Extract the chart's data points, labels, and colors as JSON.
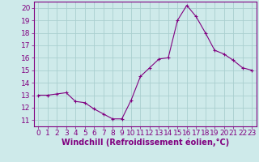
{
  "x_values": [
    0,
    1,
    2,
    3,
    4,
    5,
    6,
    7,
    8,
    9,
    10,
    11,
    12,
    13,
    14,
    15,
    16,
    17,
    18,
    19,
    20,
    21,
    22,
    23
  ],
  "y_values": [
    13.0,
    13.0,
    13.1,
    13.2,
    12.5,
    12.4,
    11.9,
    11.5,
    11.1,
    11.1,
    12.6,
    14.5,
    15.2,
    15.9,
    16.0,
    19.0,
    20.2,
    19.3,
    18.0,
    16.6,
    16.3,
    15.8,
    15.2,
    15.0
  ],
  "line_color": "#800080",
  "marker": "+",
  "marker_size": 3,
  "bg_color": "#ceeaea",
  "grid_color": "#aacfcf",
  "axis_color": "#800080",
  "tick_label_color": "#800080",
  "xlabel": "Windchill (Refroidissement éolien,°C)",
  "xlim": [
    -0.5,
    23.5
  ],
  "ylim": [
    10.5,
    20.5
  ],
  "yticks": [
    11,
    12,
    13,
    14,
    15,
    16,
    17,
    18,
    19,
    20
  ],
  "xticks": [
    0,
    1,
    2,
    3,
    4,
    5,
    6,
    7,
    8,
    9,
    10,
    11,
    12,
    13,
    14,
    15,
    16,
    17,
    18,
    19,
    20,
    21,
    22,
    23
  ],
  "font_size": 6.5,
  "label_font_size": 7
}
